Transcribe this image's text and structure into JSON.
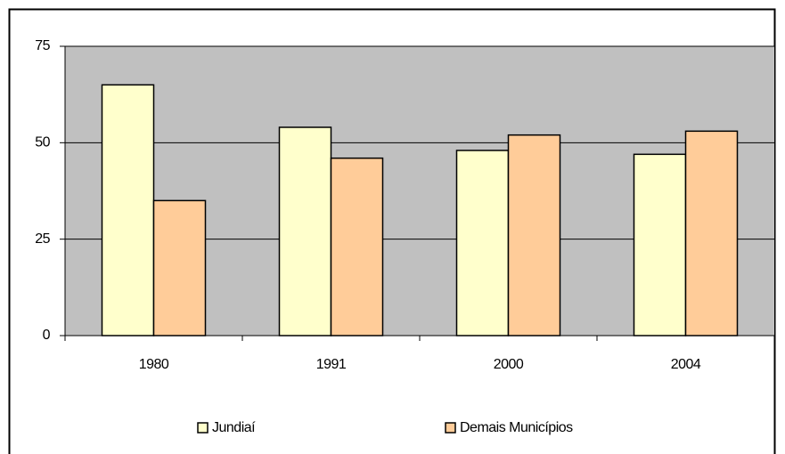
{
  "chart_data": {
    "type": "bar",
    "categories": [
      "1980",
      "1991",
      "2000",
      "2004"
    ],
    "series": [
      {
        "name": "Jundiaí",
        "color": "#ffffcc",
        "values": [
          65,
          54,
          48,
          47
        ]
      },
      {
        "name": "Demais Municípios",
        "color": "#ffcc99",
        "values": [
          35,
          46,
          52,
          53
        ]
      }
    ],
    "ylim": [
      0,
      75
    ],
    "yticks": [
      0,
      25,
      50,
      75
    ],
    "grid": true,
    "plot_background": "#c0c0c0",
    "legend": "bottom"
  }
}
